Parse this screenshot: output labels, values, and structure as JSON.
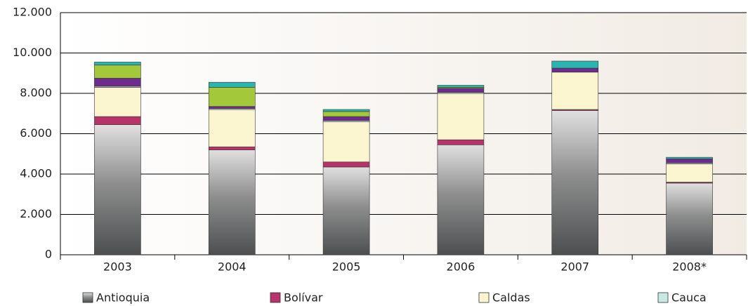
{
  "chart_data": {
    "type": "stacked_bar",
    "categories": [
      "2003",
      "2004",
      "2005",
      "2006",
      "2007",
      "2008*"
    ],
    "series": [
      {
        "name": "Antioquia",
        "color": "#8e8e8e",
        "values": [
          6450,
          5200,
          4350,
          5450,
          7150,
          3550
        ]
      },
      {
        "name": "Bolívar",
        "color": "#b8336a",
        "values": [
          400,
          150,
          250,
          250,
          50,
          50
        ]
      },
      {
        "name": "Caldas",
        "color": "#fbf6cf",
        "values": [
          1450,
          1850,
          2000,
          2300,
          1850,
          900
        ]
      },
      {
        "name": "Cauca",
        "color": "#c8e8e4",
        "values": [
          50,
          50,
          50,
          50,
          0,
          50
        ]
      },
      {
        "color": "#6e2a8c",
        "values": [
          400,
          100,
          200,
          200,
          200,
          200
        ]
      },
      {
        "color": "#a3c93a",
        "values": [
          650,
          950,
          250,
          50,
          0,
          0
        ]
      },
      {
        "color": "#2ab5b1",
        "values": [
          150,
          250,
          100,
          100,
          350,
          80
        ]
      }
    ],
    "ylim": [
      0,
      12000
    ],
    "yticks": [
      0,
      {
        "value": 2000,
        "label": "2.000"
      },
      {
        "value": 4000,
        "label": "4.000"
      },
      {
        "value": 6000,
        "label": "6.000"
      },
      {
        "value": 8000,
        "label": "8.000"
      },
      {
        "value": 10000,
        "label": "10.000"
      },
      {
        "value": 12000,
        "label": "12.000"
      }
    ],
    "grid": true
  }
}
